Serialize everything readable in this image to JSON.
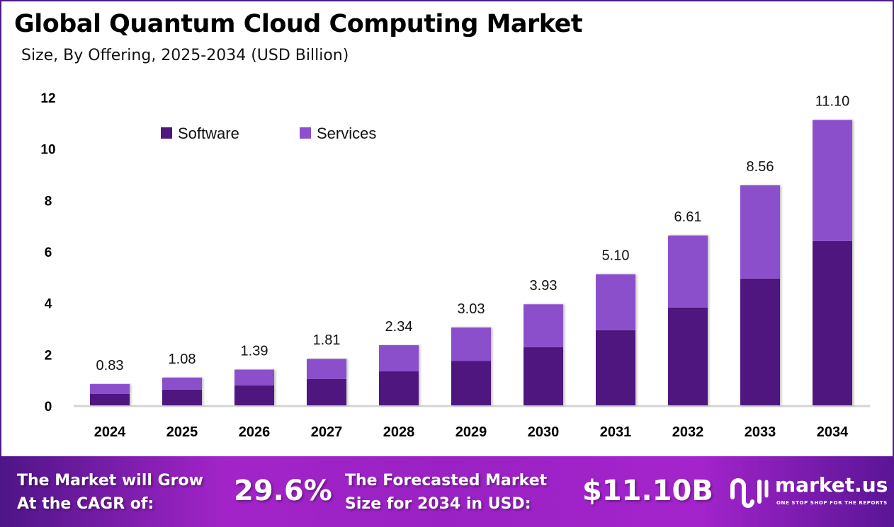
{
  "header": {
    "title": "Global Quantum Cloud Computing Market",
    "subtitle": "Size, By Offering, 2025-2034 (USD Billion)"
  },
  "chart_data": {
    "type": "bar",
    "stacked": true,
    "categories": [
      "2024",
      "2025",
      "2026",
      "2027",
      "2028",
      "2029",
      "2030",
      "2031",
      "2032",
      "2033",
      "2034"
    ],
    "series": [
      {
        "name": "Software",
        "color": "#4f1780",
        "values": [
          0.44,
          0.61,
          0.77,
          1.02,
          1.32,
          1.73,
          2.26,
          2.92,
          3.8,
          4.93,
          6.39
        ]
      },
      {
        "name": "Services",
        "color": "#8c50cc",
        "values": [
          0.39,
          0.47,
          0.62,
          0.79,
          1.02,
          1.3,
          1.67,
          2.18,
          2.81,
          3.63,
          4.71
        ]
      }
    ],
    "totals": [
      0.83,
      1.08,
      1.39,
      1.81,
      2.34,
      3.03,
      3.93,
      5.1,
      6.61,
      8.56,
      11.1
    ],
    "total_labels": [
      "0.83",
      "1.08",
      "1.39",
      "1.81",
      "2.34",
      "3.03",
      "3.93",
      "5.10",
      "6.61",
      "8.56",
      "11.10"
    ],
    "ylim": [
      0,
      12
    ],
    "yticks": [
      "0",
      "2",
      "4",
      "6",
      "8",
      "10",
      "12"
    ],
    "grid": false,
    "legend_position": "top-left"
  },
  "footer": {
    "cagr_label_line1": "The Market will Grow",
    "cagr_label_line2": "At the CAGR of:",
    "cagr_value": "29.6%",
    "forecast_label_line1": "The Forecasted Market",
    "forecast_label_line2": "Size for 2034 in USD:",
    "forecast_value": "$11.10B",
    "brand": "market.us",
    "brand_tagline": "ONE STOP SHOP FOR THE REPORTS"
  }
}
